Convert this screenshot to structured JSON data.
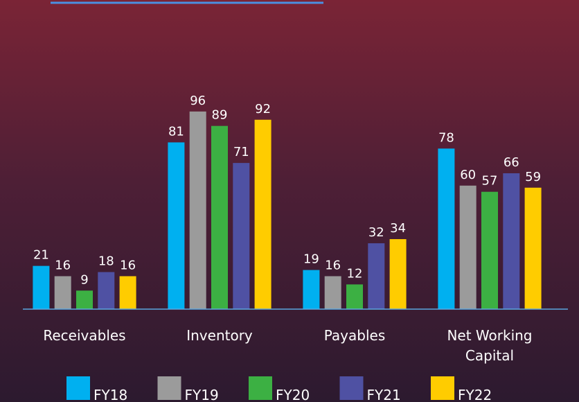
{
  "chart_data": {
    "type": "bar",
    "categories": [
      "Receivables",
      "Inventory",
      "Payables",
      "Net Working Capital"
    ],
    "series": [
      {
        "name": "FY18",
        "color": "#00b0f0",
        "values": [
          21,
          81,
          19,
          78
        ]
      },
      {
        "name": "FY19",
        "color": "#9b9b9b",
        "values": [
          16,
          96,
          16,
          60
        ]
      },
      {
        "name": "FY20",
        "color": "#3cb043",
        "values": [
          9,
          89,
          12,
          57
        ]
      },
      {
        "name": "FY21",
        "color": "#4f51a3",
        "values": [
          18,
          71,
          32,
          66
        ]
      },
      {
        "name": "FY22",
        "color": "#ffcc00",
        "values": [
          16,
          92,
          34,
          59
        ]
      }
    ],
    "ylim": [
      0,
      100
    ]
  }
}
